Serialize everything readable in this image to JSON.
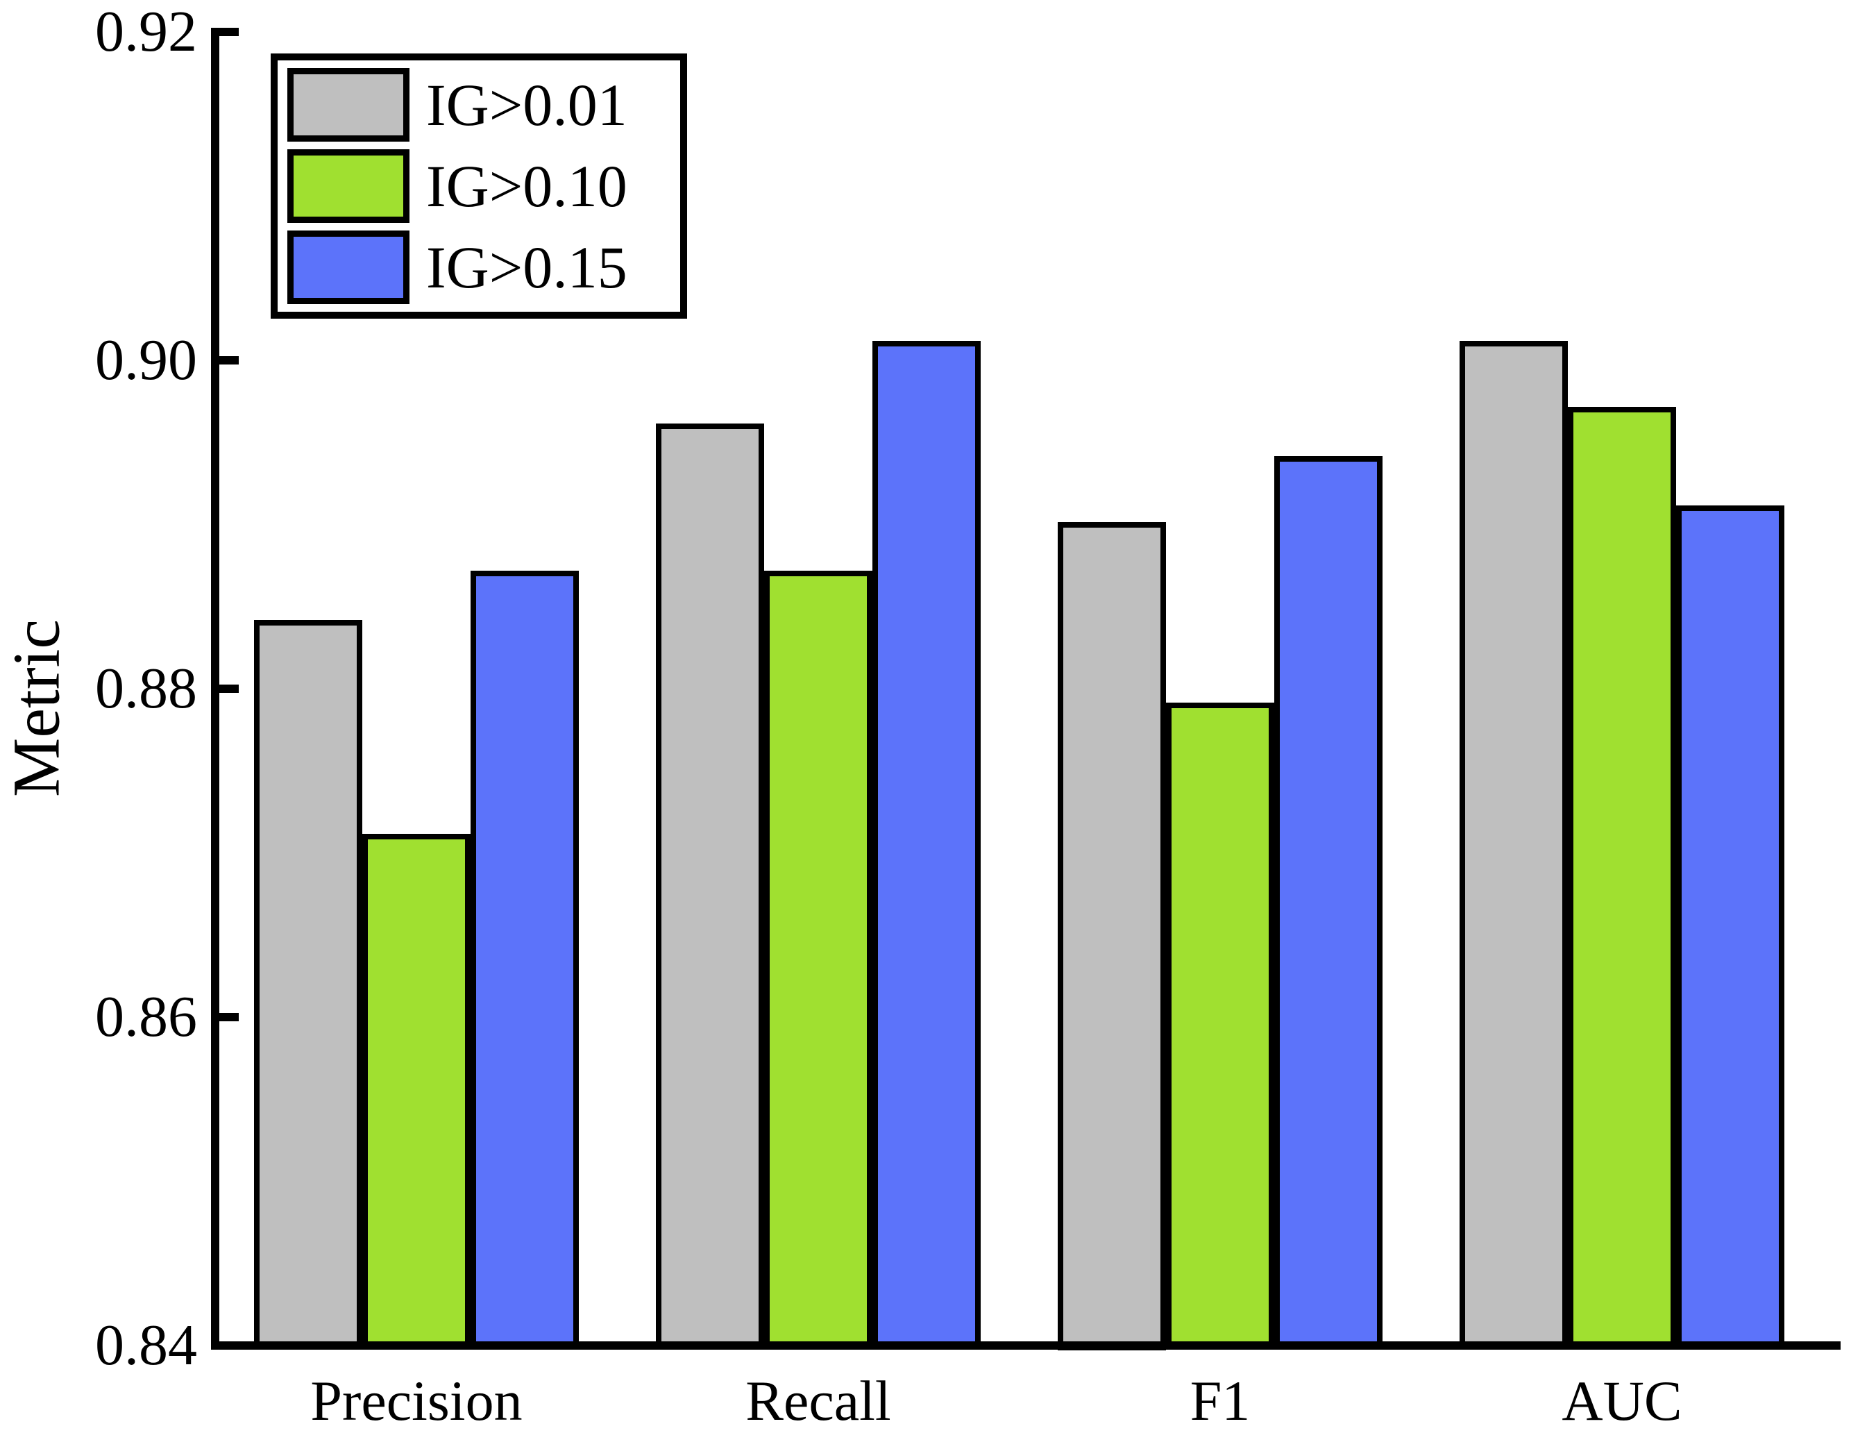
{
  "figure": {
    "background_color": "#ffffff",
    "text_color": "#000000"
  },
  "chart_data": {
    "type": "bar",
    "title": "",
    "ylabel": "Metric",
    "xlabel": "",
    "categories": [
      "Precision",
      "Recall",
      "F1",
      "AUC"
    ],
    "series": [
      {
        "name": "IG>0.01",
        "color": "#bfbfbf",
        "values": [
          0.884,
          0.896,
          0.89,
          0.901
        ]
      },
      {
        "name": "IG>0.10",
        "color": "#a0e030",
        "values": [
          0.871,
          0.887,
          0.879,
          0.897
        ]
      },
      {
        "name": "IG>0.15",
        "color": "#5c73fa",
        "values": [
          0.887,
          0.901,
          0.894,
          0.891
        ]
      }
    ],
    "ylim": [
      0.84,
      0.92
    ],
    "yticks": [
      0.92,
      0.9,
      0.88,
      0.86,
      0.84
    ],
    "ytick_labels": [
      "0.92",
      "0.90",
      "0.88",
      "0.86",
      "0.84"
    ],
    "bar_edge_color": "#000000",
    "legend_position": "upper left",
    "grid": false
  }
}
